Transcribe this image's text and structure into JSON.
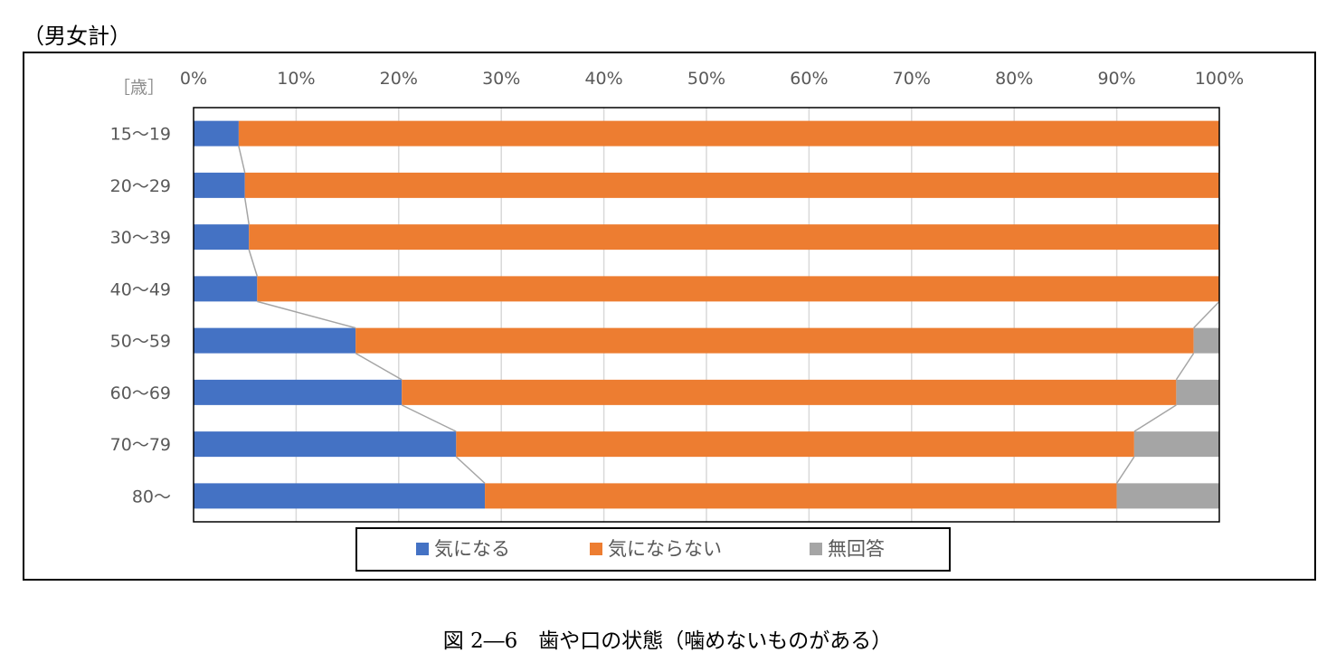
{
  "header": {
    "subset_label": "（男女計）"
  },
  "caption": "図 2―6　歯や口の状態（噛めないものがある）",
  "chart_data": {
    "type": "bar",
    "orientation": "horizontal",
    "stacked": "percent",
    "ylabel": "［歳］",
    "categories": [
      "15～19",
      "20～29",
      "30～39",
      "40～49",
      "50～59",
      "60～69",
      "70～79",
      "80～"
    ],
    "xlim": [
      0,
      100
    ],
    "x_ticks": [
      "0%",
      "10%",
      "20%",
      "30%",
      "40%",
      "50%",
      "60%",
      "70%",
      "80%",
      "90%",
      "100%"
    ],
    "grid": true,
    "series_lines": true,
    "legend_position": "bottom",
    "series": [
      {
        "name": "気になる",
        "color": "#4472C4",
        "values": [
          4.4,
          5.0,
          5.4,
          6.2,
          15.8,
          20.3,
          25.6,
          28.4
        ]
      },
      {
        "name": "気にならない",
        "color": "#ED7D31",
        "values": [
          95.6,
          95.0,
          94.6,
          93.8,
          81.7,
          75.5,
          66.1,
          61.6
        ]
      },
      {
        "name": "無回答",
        "color": "#A5A5A5",
        "values": [
          0,
          0,
          0,
          0,
          2.5,
          4.2,
          8.3,
          10.0
        ]
      }
    ]
  }
}
